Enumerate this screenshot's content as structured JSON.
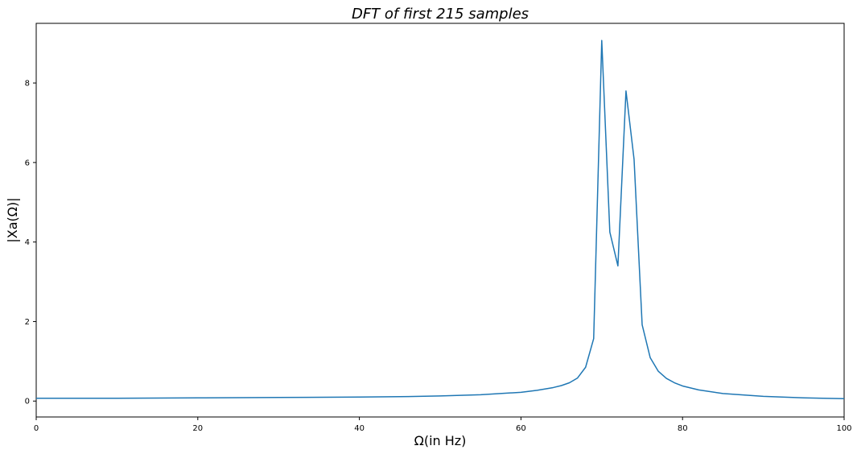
{
  "chart_data": {
    "type": "line",
    "title": "DFT of first 215 samples",
    "xlabel": "Ω(in Hz)",
    "ylabel": "|Xa(Ω)|",
    "xlim": [
      0,
      100
    ],
    "ylim": [
      -0.4,
      9.5
    ],
    "xticks": [
      0,
      20,
      40,
      60,
      80,
      100
    ],
    "yticks": [
      0,
      2,
      4,
      6,
      8
    ],
    "grid": false,
    "series": [
      {
        "color": "#1f77b4",
        "x": [
          0,
          10,
          20,
          30,
          40,
          45,
          50,
          55,
          60,
          62,
          64,
          65,
          66,
          67,
          68,
          69,
          70,
          71,
          72,
          73,
          74,
          75,
          76,
          77,
          78,
          79,
          80,
          82,
          85,
          90,
          95,
          100
        ],
        "y": [
          0.07,
          0.07,
          0.08,
          0.09,
          0.1,
          0.11,
          0.13,
          0.16,
          0.22,
          0.27,
          0.34,
          0.39,
          0.46,
          0.58,
          0.85,
          1.57,
          9.07,
          4.25,
          3.4,
          7.8,
          6.08,
          1.92,
          1.09,
          0.75,
          0.57,
          0.46,
          0.38,
          0.28,
          0.19,
          0.12,
          0.08,
          0.06
        ]
      }
    ]
  }
}
